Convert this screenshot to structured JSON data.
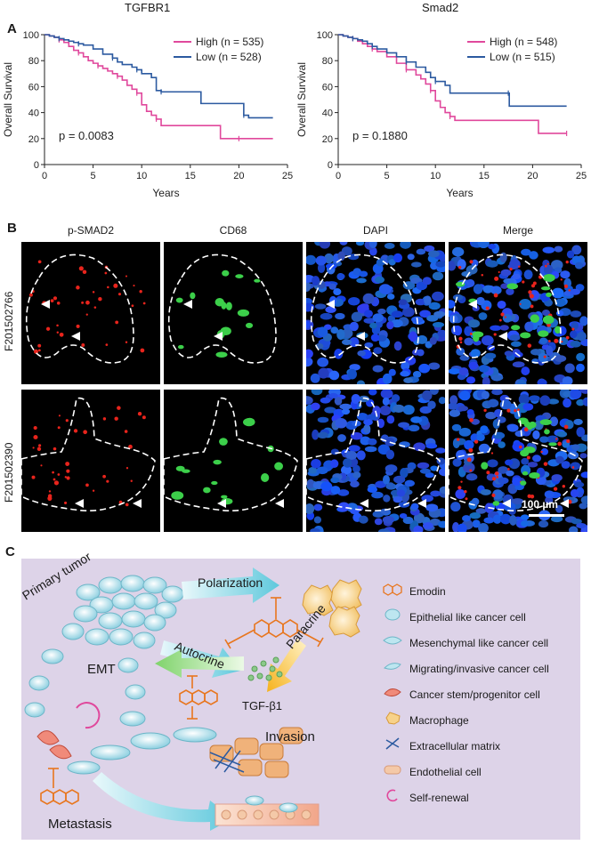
{
  "panel_a": {
    "letter": "A",
    "ylabel": "Overall Survival",
    "xlabel": "Years"
  },
  "chart_data": [
    {
      "type": "line",
      "title": "TGFBR1",
      "xlabel": "Years",
      "ylabel": "Overall Survival",
      "xlim": [
        0,
        25
      ],
      "ylim": [
        0,
        100
      ],
      "xticks": [
        0,
        5,
        10,
        15,
        20,
        25
      ],
      "yticks": [
        0,
        20,
        40,
        60,
        80,
        100
      ],
      "annotation": "p = 0.0083",
      "legend": "top-right",
      "series": [
        {
          "name": "High (n = 535)",
          "color": "#e0489c",
          "x": [
            0,
            0.5,
            1,
            1.5,
            2,
            2.5,
            3,
            3.5,
            4,
            4.5,
            5,
            5.5,
            6,
            6.5,
            7,
            7.5,
            8,
            8.5,
            9,
            9.5,
            10,
            10.5,
            11,
            11.5,
            12,
            18,
            18.1,
            20,
            23.5
          ],
          "y": [
            100,
            99,
            98,
            96,
            94,
            91,
            88,
            86,
            83,
            80,
            78,
            76,
            74,
            72,
            70,
            68,
            65,
            61,
            58,
            55,
            46,
            41,
            38,
            35,
            30,
            30,
            20,
            20,
            20
          ]
        },
        {
          "name": "Low (n = 528)",
          "color": "#2c5aa0",
          "x": [
            0,
            0.5,
            1,
            1.5,
            2,
            2.5,
            3,
            3.5,
            4,
            5,
            6,
            7,
            7.5,
            8,
            9,
            9.5,
            10,
            11,
            11.5,
            12,
            16,
            16.1,
            20,
            20.5,
            21,
            23.5
          ],
          "y": [
            100,
            99,
            98,
            97,
            96,
            95,
            94,
            93,
            92,
            89,
            85,
            82,
            79,
            77,
            75,
            73,
            70,
            67,
            57,
            56,
            56,
            47,
            47,
            38,
            36,
            36
          ]
        }
      ]
    },
    {
      "type": "line",
      "title": "Smad2",
      "xlabel": "Years",
      "ylabel": "Overall Survival",
      "xlim": [
        0,
        25
      ],
      "ylim": [
        0,
        100
      ],
      "xticks": [
        0,
        5,
        10,
        15,
        20,
        25
      ],
      "yticks": [
        0,
        20,
        40,
        60,
        80,
        100
      ],
      "annotation": "p = 0.1880",
      "legend": "top-right",
      "series": [
        {
          "name": "High (n = 548)",
          "color": "#e0489c",
          "x": [
            0,
            0.5,
            1,
            1.5,
            2,
            2.5,
            3,
            3.5,
            4,
            5,
            6,
            7,
            8,
            8.5,
            9,
            9.5,
            10,
            10.5,
            11,
            11.5,
            12,
            20.5,
            20.6,
            23.5
          ],
          "y": [
            100,
            99,
            98,
            97,
            95,
            93,
            91,
            89,
            87,
            83,
            78,
            73,
            69,
            66,
            62,
            57,
            49,
            44,
            40,
            37,
            34,
            34,
            24,
            24
          ]
        },
        {
          "name": "Low (n = 515)",
          "color": "#2c5aa0",
          "x": [
            0,
            0.5,
            1,
            1.5,
            2,
            2.5,
            3,
            3.5,
            4,
            5,
            6,
            7,
            8,
            9,
            9.5,
            10,
            11,
            11.5,
            12,
            17.5,
            17.6,
            23.5
          ],
          "y": [
            100,
            99,
            98,
            97,
            96,
            95,
            93,
            91,
            89,
            86,
            83,
            79,
            75,
            71,
            67,
            64,
            61,
            55,
            55,
            55,
            45,
            45
          ]
        }
      ]
    }
  ],
  "panel_b": {
    "letter": "B",
    "columns": [
      "p-SMAD2",
      "CD68",
      "DAPI",
      "Merge"
    ],
    "rows": [
      "F201502766",
      "F201502390"
    ],
    "scalebar": "100 µm"
  },
  "panel_c": {
    "letter": "C",
    "labels": {
      "primary_tumor": "Primary tumor",
      "polarization": "Polarization",
      "autocrine": "Autocrine",
      "paracrine": "Paracrine",
      "emt": "EMT",
      "tgf": "TGF-β1",
      "invasion": "Invasion",
      "metastasis": "Metastasis"
    },
    "legend": [
      {
        "icon": "emodin-icon",
        "label": "Emodin"
      },
      {
        "icon": "epithelial-cell-icon",
        "label": "Epithelial like cancer cell"
      },
      {
        "icon": "mesenchymal-cell-icon",
        "label": "Mesenchymal like cancer cell"
      },
      {
        "icon": "migrating-cell-icon",
        "label": "Migrating/invasive cancer cell"
      },
      {
        "icon": "stem-cell-icon",
        "label": "Cancer stem/progenitor cell"
      },
      {
        "icon": "macrophage-icon",
        "label": "Macrophage"
      },
      {
        "icon": "ecm-icon",
        "label": "Extracellular matrix"
      },
      {
        "icon": "endothelial-cell-icon",
        "label": "Endothelial cell"
      },
      {
        "icon": "self-renewal-icon",
        "label": "Self-renewal"
      }
    ],
    "colors": {
      "background": "#ddd3e8",
      "arrow_cyan": "#5ec8dc",
      "arrow_green": "#7fd36b",
      "arrow_orange": "#f6b21c",
      "inhibit": "#e8761e"
    }
  }
}
